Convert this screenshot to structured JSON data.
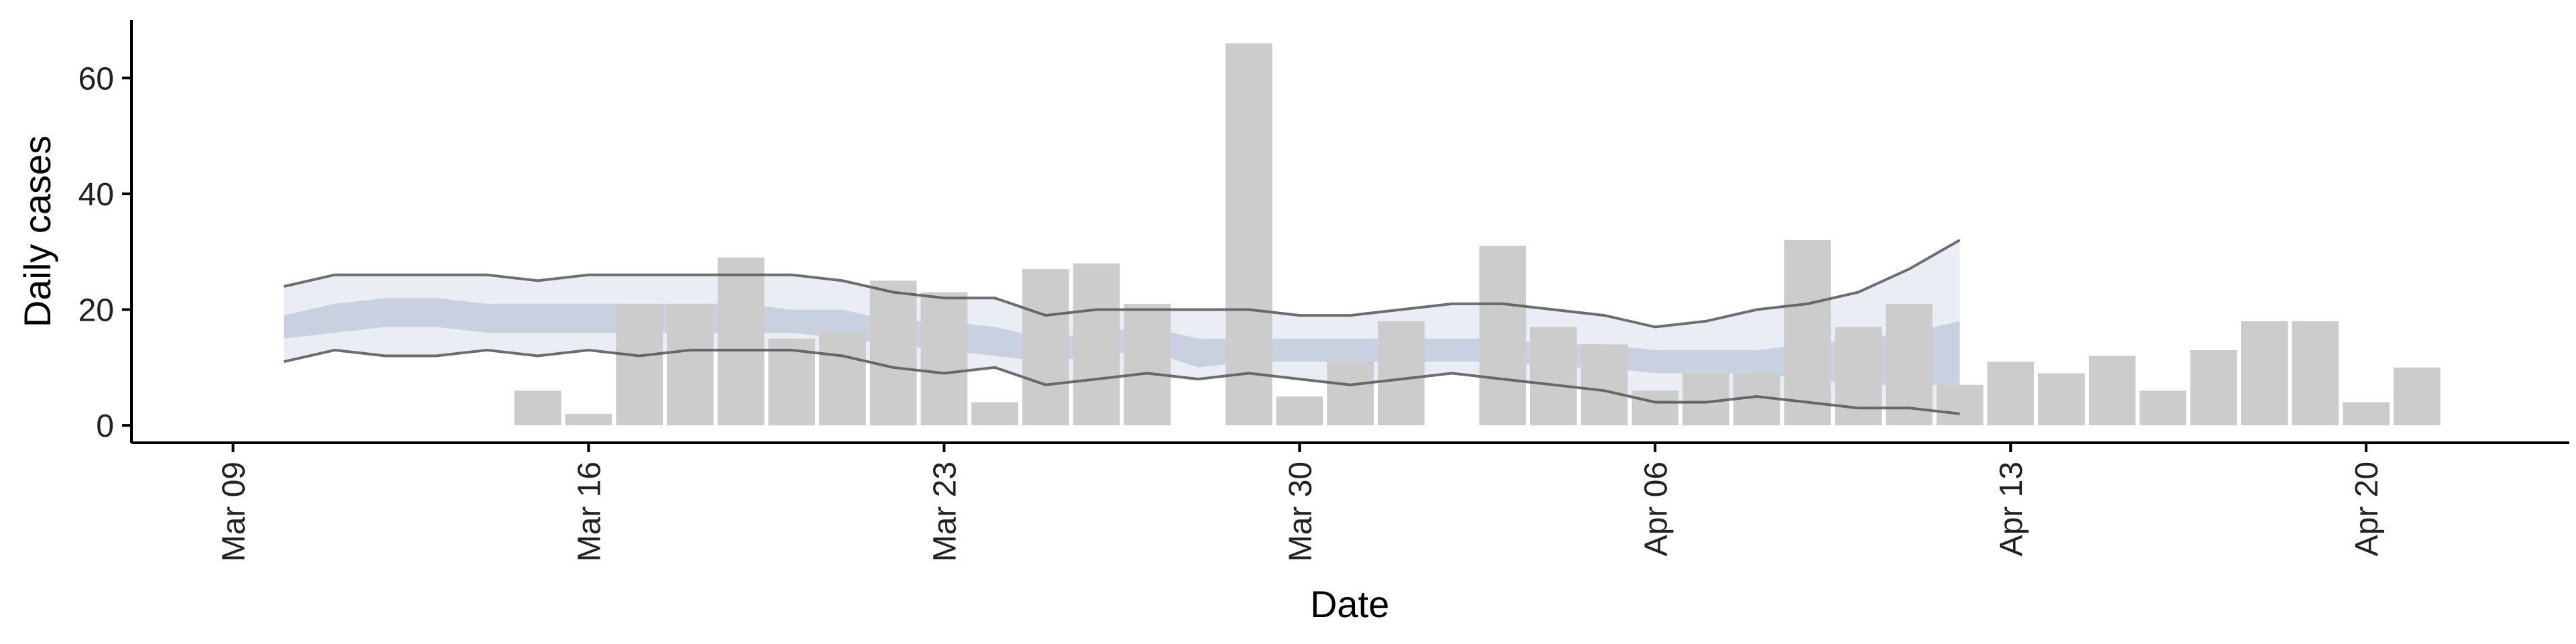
{
  "chart_data": {
    "type": "bar",
    "title": "",
    "xlabel": "Date",
    "ylabel": "Daily cases",
    "ylim": [
      -3,
      70
    ],
    "xlim": [
      "2020-03-07",
      "2020-04-24"
    ],
    "grid": false,
    "x_ticks": [
      {
        "date": "2020-03-09",
        "label": "Mar 09"
      },
      {
        "date": "2020-03-16",
        "label": "Mar 16"
      },
      {
        "date": "2020-03-23",
        "label": "Mar 23"
      },
      {
        "date": "2020-03-30",
        "label": "Mar 30"
      },
      {
        "date": "2020-04-06",
        "label": "Apr 06"
      },
      {
        "date": "2020-04-13",
        "label": "Apr 13"
      },
      {
        "date": "2020-04-20",
        "label": "Apr 20"
      }
    ],
    "y_ticks": [
      0,
      20,
      40,
      60
    ],
    "bars": {
      "dates": [
        "2020-03-15",
        "2020-03-16",
        "2020-03-17",
        "2020-03-18",
        "2020-03-19",
        "2020-03-20",
        "2020-03-21",
        "2020-03-22",
        "2020-03-23",
        "2020-03-24",
        "2020-03-25",
        "2020-03-26",
        "2020-03-27",
        "2020-03-28",
        "2020-03-29",
        "2020-03-30",
        "2020-03-31",
        "2020-04-01",
        "2020-04-02",
        "2020-04-03",
        "2020-04-04",
        "2020-04-05",
        "2020-04-06",
        "2020-04-07",
        "2020-04-08",
        "2020-04-09",
        "2020-04-10",
        "2020-04-11",
        "2020-04-12",
        "2020-04-13",
        "2020-04-14",
        "2020-04-15",
        "2020-04-16",
        "2020-04-17",
        "2020-04-18",
        "2020-04-19",
        "2020-04-20",
        "2020-04-21"
      ],
      "values": [
        6,
        2,
        21,
        21,
        29,
        15,
        16,
        25,
        23,
        4,
        27,
        28,
        21,
        0,
        66,
        5,
        11,
        18,
        0,
        31,
        17,
        14,
        6,
        9,
        9,
        32,
        17,
        21,
        7,
        11,
        9,
        12,
        6,
        13,
        18,
        18,
        4,
        10
      ],
      "color": "#cccccc"
    },
    "band": {
      "dates": [
        "2020-03-10",
        "2020-03-11",
        "2020-03-12",
        "2020-03-13",
        "2020-03-14",
        "2020-03-15",
        "2020-03-16",
        "2020-03-17",
        "2020-03-18",
        "2020-03-19",
        "2020-03-20",
        "2020-03-21",
        "2020-03-22",
        "2020-03-23",
        "2020-03-24",
        "2020-03-25",
        "2020-03-26",
        "2020-03-27",
        "2020-03-28",
        "2020-03-29",
        "2020-03-30",
        "2020-03-31",
        "2020-04-01",
        "2020-04-02",
        "2020-04-03",
        "2020-04-04",
        "2020-04-05",
        "2020-04-06",
        "2020-04-07",
        "2020-04-08",
        "2020-04-09",
        "2020-04-10",
        "2020-04-11",
        "2020-04-12"
      ],
      "outer_upper": [
        24,
        26,
        26,
        26,
        26,
        25,
        26,
        26,
        26,
        26,
        26,
        25,
        23,
        22,
        22,
        19,
        20,
        20,
        20,
        20,
        19,
        19,
        20,
        21,
        21,
        20,
        19,
        17,
        18,
        20,
        21,
        23,
        27,
        32
      ],
      "outer_lower": [
        11,
        13,
        12,
        12,
        13,
        12,
        13,
        12,
        13,
        13,
        13,
        12,
        10,
        9,
        10,
        7,
        8,
        9,
        8,
        9,
        8,
        7,
        8,
        9,
        8,
        7,
        6,
        4,
        4,
        5,
        4,
        3,
        3,
        2
      ],
      "inner_upper": [
        19,
        21,
        22,
        22,
        21,
        21,
        21,
        21,
        21,
        21,
        20,
        20,
        18,
        18,
        17,
        15,
        16,
        17,
        15,
        15,
        15,
        15,
        15,
        15,
        15,
        14,
        14,
        13,
        13,
        13,
        14,
        15,
        16,
        18
      ],
      "inner_lower": [
        15,
        16,
        17,
        17,
        16,
        16,
        16,
        16,
        16,
        16,
        16,
        15,
        14,
        13,
        12,
        11,
        12,
        13,
        10,
        11,
        11,
        11,
        11,
        11,
        11,
        10,
        10,
        9,
        9,
        9,
        8,
        7,
        7,
        7
      ],
      "outer_color": "#e8eaf2",
      "inner_color": "#c3cadc",
      "line_color": "#555555"
    }
  }
}
